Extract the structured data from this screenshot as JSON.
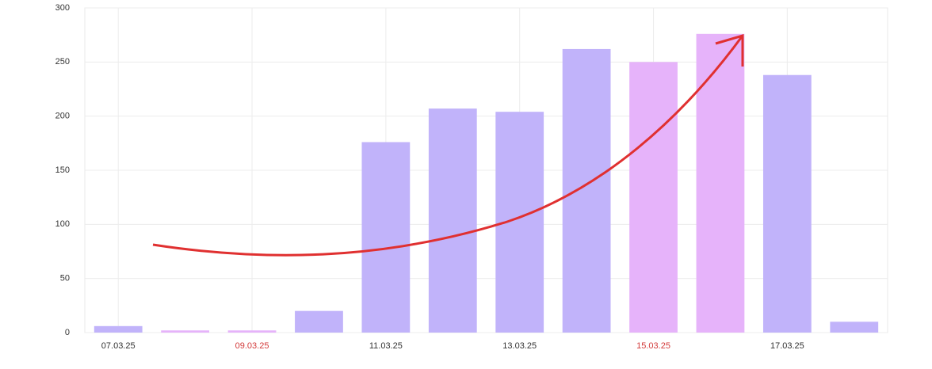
{
  "chart_data": {
    "type": "bar",
    "categories": [
      "07.03.25",
      null,
      "09.03.25",
      null,
      "11.03.25",
      null,
      "13.03.25",
      null,
      "15.03.25",
      null,
      "17.03.25",
      null
    ],
    "values": [
      6,
      2,
      2,
      20,
      176,
      207,
      204,
      262,
      250,
      276,
      238,
      10
    ],
    "colors": [
      "#c1b3fa",
      "#e6b3fa",
      "#e6b3fa",
      "#c1b3fa",
      "#c1b3fa",
      "#c1b3fa",
      "#c1b3fa",
      "#c1b3fa",
      "#e6b3fa",
      "#e6b3fa",
      "#c1b3fa",
      "#c1b3fa"
    ],
    "label_colors": [
      "#333333",
      null,
      "#d33b3b",
      null,
      "#333333",
      null,
      "#333333",
      null,
      "#d33b3b",
      null,
      "#333333",
      null
    ],
    "ylim": [
      0,
      300
    ],
    "yticks": [
      0,
      50,
      100,
      150,
      200,
      250,
      300
    ],
    "grid": true
  }
}
